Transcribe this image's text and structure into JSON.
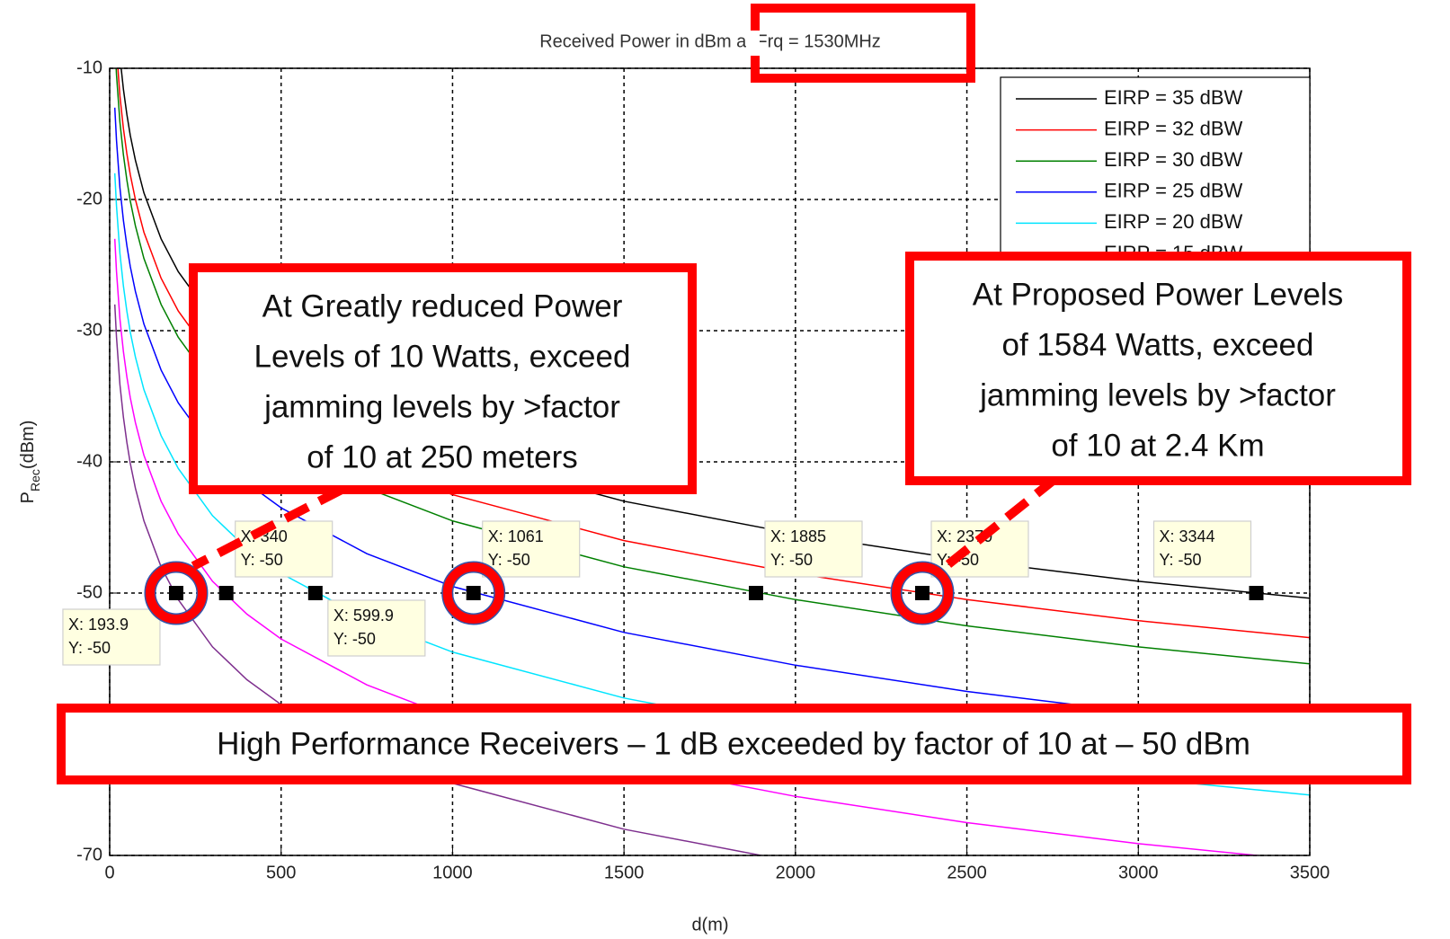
{
  "chart_data": {
    "type": "line",
    "title": "Received Power in dBm at Frq = 1530MHz",
    "xlabel": "d(m)",
    "ylabel": {
      "main": "P",
      "sub": "Rec",
      "unit": "(dBm)"
    },
    "xlim": [
      0,
      3500
    ],
    "xticks": [
      0,
      500,
      1000,
      1500,
      2000,
      2500,
      3000,
      3500
    ],
    "ylim": [
      -70,
      -10
    ],
    "yticks": [
      -70,
      -60,
      -50,
      -40,
      -30,
      -20,
      -10
    ],
    "grid": true,
    "legend": "upper right",
    "x": [
      15,
      20,
      30,
      40,
      50,
      60,
      75,
      100,
      150,
      200,
      300,
      400,
      500,
      750,
      1000,
      1500,
      2000,
      2500,
      3000,
      3500
    ],
    "series": [
      {
        "name": "EIRP = 35 dBW",
        "color": "#000000",
        "values": [
          -3.0,
          -5.5,
          -9.1,
          -11.6,
          -13.5,
          -15.1,
          -17.0,
          -19.5,
          -23.0,
          -25.5,
          -29.1,
          -31.6,
          -33.5,
          -37.0,
          -39.5,
          -43.0,
          -45.5,
          -47.5,
          -49.1,
          -50.4
        ]
      },
      {
        "name": "EIRP = 32 dBW",
        "color": "#ff0000",
        "values": [
          -6.0,
          -8.5,
          -12.1,
          -14.6,
          -16.5,
          -18.1,
          -20.0,
          -22.5,
          -26.0,
          -28.5,
          -32.1,
          -34.6,
          -36.5,
          -40.0,
          -42.5,
          -46.0,
          -48.5,
          -50.5,
          -52.1,
          -53.4
        ]
      },
      {
        "name": "EIRP = 30 dBW",
        "color": "#008000",
        "values": [
          -8.0,
          -10.5,
          -14.1,
          -16.6,
          -18.5,
          -20.1,
          -22.0,
          -24.5,
          -28.0,
          -30.5,
          -34.1,
          -36.6,
          -38.5,
          -42.0,
          -44.5,
          -48.0,
          -50.5,
          -52.5,
          -54.1,
          -55.4
        ]
      },
      {
        "name": "EIRP = 25 dBW",
        "color": "#0000ff",
        "values": [
          -13.0,
          -15.5,
          -19.1,
          -21.6,
          -23.5,
          -25.1,
          -27.0,
          -29.5,
          -33.0,
          -35.5,
          -39.1,
          -41.6,
          -43.5,
          -47.0,
          -49.5,
          -53.0,
          -55.5,
          -57.5,
          -59.1,
          -60.4
        ]
      },
      {
        "name": "EIRP = 20 dBW",
        "color": "#00e5ff",
        "values": [
          -18.0,
          -20.5,
          -24.1,
          -26.6,
          -28.5,
          -30.1,
          -32.0,
          -34.5,
          -38.0,
          -40.5,
          -44.1,
          -46.6,
          -48.5,
          -52.0,
          -54.5,
          -58.0,
          -60.5,
          -62.5,
          -64.1,
          -65.4
        ]
      },
      {
        "name": "EIRP = 15 dBW",
        "color": "#ff00ff",
        "values": [
          -23.0,
          -25.5,
          -29.1,
          -31.6,
          -33.5,
          -35.1,
          -37.0,
          -39.5,
          -43.0,
          -45.5,
          -49.1,
          -51.6,
          -53.5,
          -57.0,
          -59.5,
          -63.0,
          -65.5,
          -67.5,
          -69.1,
          -70.4
        ]
      },
      {
        "color": "#7e2f8e",
        "values": [
          -28.0,
          -30.5,
          -34.1,
          -36.6,
          -38.5,
          -40.1,
          -42.0,
          -44.5,
          -48.0,
          -50.5,
          -54.1,
          -56.6,
          -58.5,
          -62.0,
          -64.5,
          -68.0,
          -70.5,
          -72.5,
          -74.1,
          -75.4
        ]
      }
    ],
    "datatips": [
      {
        "x": 193.9,
        "y": -50,
        "x_label": "X: 193.9",
        "y_label": "Y: -50"
      },
      {
        "x": 340,
        "y": -50,
        "x_label": "X: 340",
        "y_label": "Y: -50"
      },
      {
        "x": 599.9,
        "y": -50,
        "x_label": "X: 599.9",
        "y_label": "Y: -50"
      },
      {
        "x": 1061,
        "y": -50,
        "x_label": "X: 1061",
        "y_label": "Y: -50"
      },
      {
        "x": 1885,
        "y": -50,
        "x_label": "X: 1885",
        "y_label": "Y: -50"
      },
      {
        "x": 2370,
        "y": -50,
        "x_label": "X: 2370",
        "y_label": "Y: -50"
      },
      {
        "x": 3344,
        "y": -50,
        "x_label": "X: 3344",
        "y_label": "Y: -50"
      }
    ],
    "annotations": [
      {
        "lines": [
          "At Greatly reduced Power",
          "Levels of 10 Watts, exceed",
          "jamming levels by >factor",
          "of 10 at 250 meters"
        ]
      },
      {
        "lines": [
          "At Proposed Power Levels",
          "of 1584 Watts, exceed",
          "jamming levels by >factor",
          "of 10 at 2.4 Km"
        ]
      },
      {
        "lines": [
          "High Performance Receivers – 1 dB exceeded by factor of 10 at – 50 dBm"
        ]
      }
    ]
  }
}
